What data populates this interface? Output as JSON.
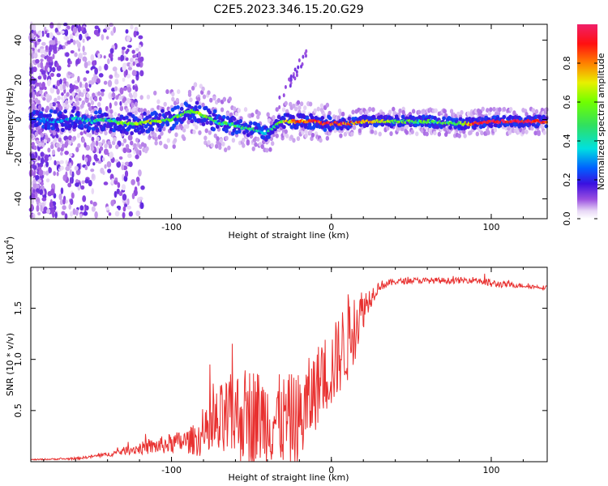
{
  "title": "C2E5.2023.346.15.20.G29",
  "chart_data": [
    {
      "type": "heatmap",
      "xlabel": "Height of straight line (km)",
      "ylabel": "Frequency (Hz)",
      "xlim": [
        -188,
        135
      ],
      "ylim": [
        -50,
        48
      ],
      "x_ticks": [
        "-100",
        "0",
        "100"
      ],
      "y_ticks": [
        "-40",
        "-20",
        "0",
        "20",
        "40"
      ],
      "colorbar": {
        "label": "Normalized spectral amplitude",
        "range": [
          0,
          1
        ],
        "ticks": [
          "0.0",
          "0.2",
          "0.4",
          "0.6",
          "0.8"
        ]
      },
      "ridge": {
        "x": [
          -185,
          -170,
          -160,
          -150,
          -140,
          -130,
          -120,
          -110,
          -100,
          -95,
          -90,
          -85,
          -80,
          -75,
          -70,
          -65,
          -60,
          -55,
          -50,
          -45,
          -40,
          -35,
          -30,
          -25,
          -20,
          -15,
          -10,
          -5,
          0,
          10,
          20,
          40,
          60,
          80,
          90,
          95,
          100,
          120,
          135
        ],
        "y": [
          0,
          -1,
          1,
          -1,
          0,
          -2,
          -2,
          -1,
          0,
          2,
          4,
          4,
          2,
          0,
          -2,
          -2,
          -3,
          -4,
          -5,
          -6,
          -7,
          -3,
          -1,
          -1,
          -1,
          -1,
          -1,
          -2,
          -2,
          -2,
          -1,
          -1,
          -1,
          -2,
          -2,
          -1,
          -1,
          -1,
          -1
        ],
        "amplitude": [
          0.2,
          0.3,
          0.35,
          0.35,
          0.4,
          0.55,
          0.6,
          0.65,
          0.55,
          0.55,
          0.55,
          0.6,
          0.55,
          0.5,
          0.45,
          0.45,
          0.45,
          0.45,
          0.4,
          0.35,
          0.35,
          0.45,
          0.6,
          0.75,
          0.8,
          0.85,
          0.85,
          0.9,
          0.9,
          0.85,
          0.75,
          0.55,
          0.5,
          0.55,
          0.9,
          0.9,
          0.95,
          0.95,
          0.95
        ]
      }
    },
    {
      "type": "line",
      "xlabel": "Height of straight line (km)",
      "ylabel": "SNR (10 * v/v)",
      "y_multiplier": "(x10",
      "y_multiplier_exp": "4",
      "xlim": [
        -188,
        135
      ],
      "ylim": [
        0,
        1.9
      ],
      "x_ticks": [
        "-100",
        "0",
        "100"
      ],
      "y_ticks": [
        "0.5",
        "1.0",
        "1.5"
      ],
      "series": [
        {
          "color": "#e8302f",
          "envelope_x": [
            -188,
            -160,
            -140,
            -125,
            -110,
            -100,
            -90,
            -80,
            -75,
            -70,
            -60,
            -50,
            -40,
            -30,
            -20,
            -15,
            -10,
            -5,
            0,
            5,
            10,
            15,
            20,
            25,
            30,
            40,
            50,
            60,
            70,
            80,
            90,
            95,
            100,
            110,
            120,
            135
          ],
          "envelope_y": [
            0.02,
            0.03,
            0.07,
            0.12,
            0.15,
            0.18,
            0.2,
            0.24,
            0.3,
            0.35,
            0.45,
            0.45,
            0.42,
            0.4,
            0.38,
            0.55,
            0.7,
            0.85,
            0.9,
            1.05,
            1.2,
            1.35,
            1.5,
            1.62,
            1.72,
            1.76,
            1.77,
            1.77,
            1.77,
            1.77,
            1.78,
            1.76,
            1.74,
            1.73,
            1.72,
            1.7
          ],
          "noise_amp": [
            0.005,
            0.01,
            0.02,
            0.05,
            0.08,
            0.1,
            0.12,
            0.2,
            0.35,
            0.4,
            0.45,
            0.5,
            0.45,
            0.45,
            0.5,
            0.45,
            0.4,
            0.4,
            0.4,
            0.4,
            0.45,
            0.35,
            0.2,
            0.1,
            0.05,
            0.03,
            0.03,
            0.03,
            0.03,
            0.03,
            0.03,
            0.05,
            0.04,
            0.03,
            0.02,
            0.02
          ]
        }
      ]
    }
  ]
}
